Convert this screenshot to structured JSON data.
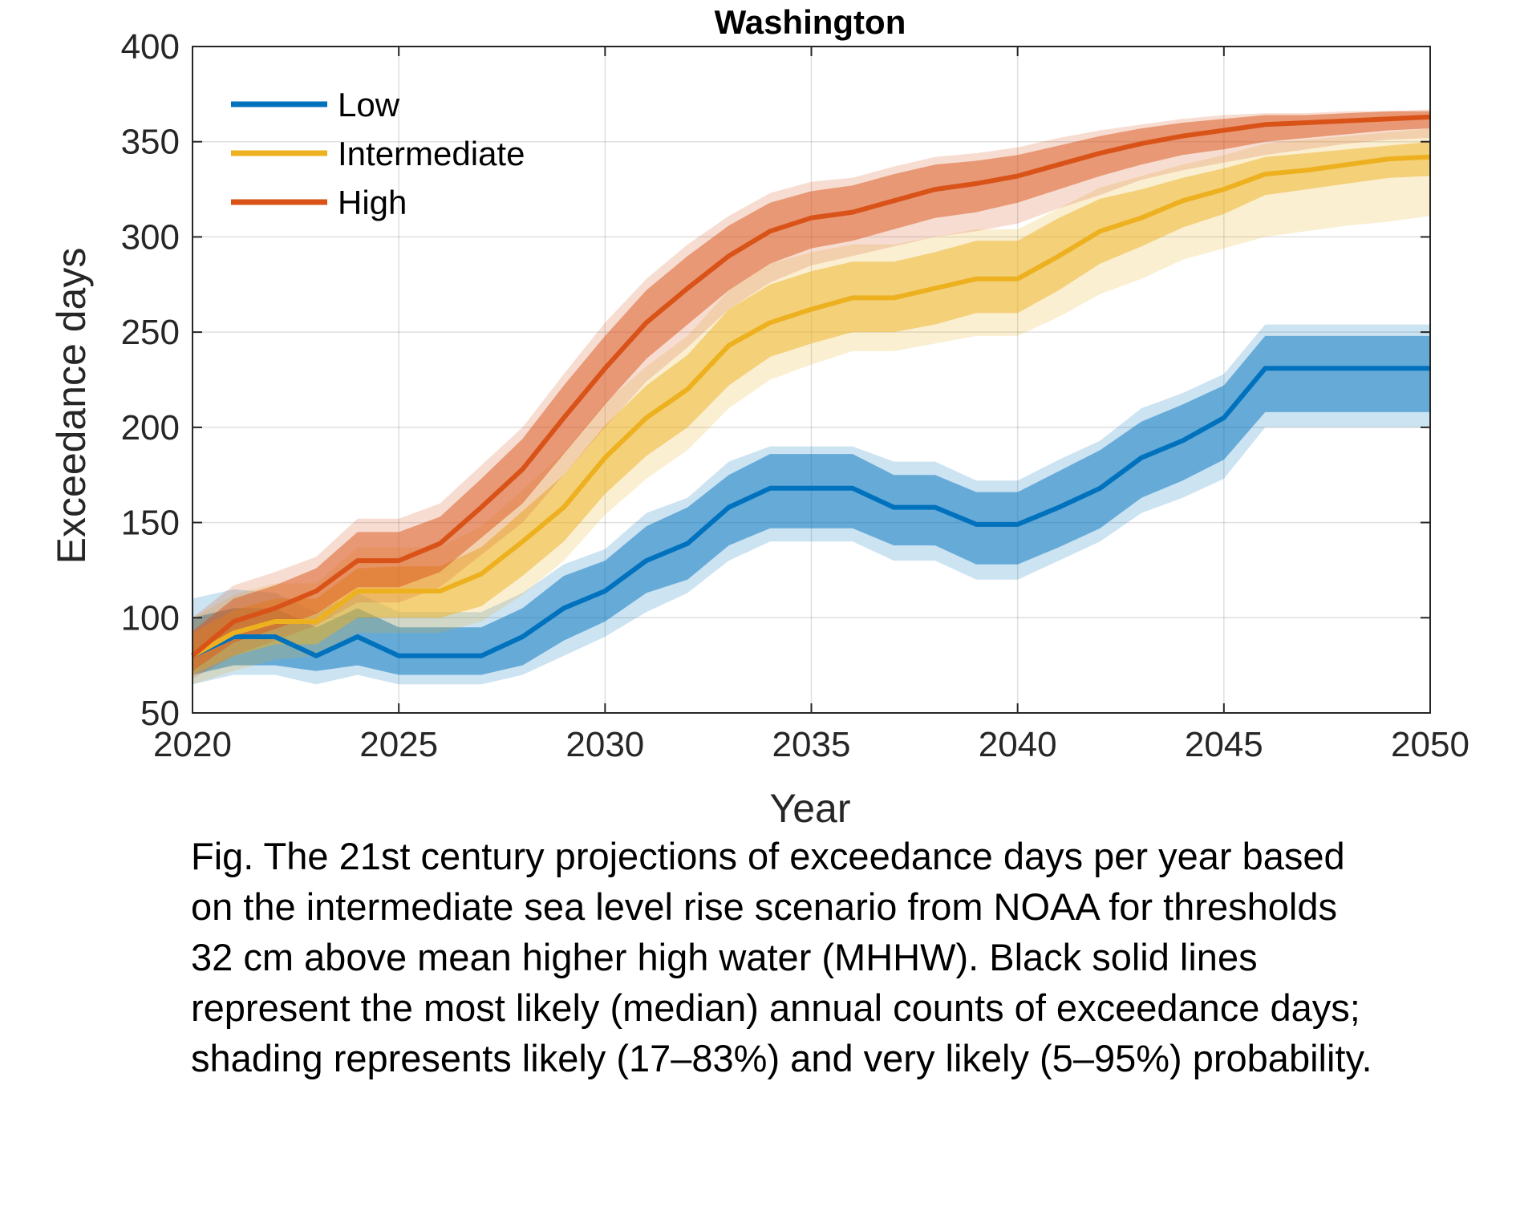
{
  "chart_data": {
    "type": "area",
    "title": "Washington",
    "xlabel": "Year",
    "ylabel": "Exceedance days",
    "xlim": [
      2020,
      2050
    ],
    "ylim": [
      50,
      400
    ],
    "xticks": [
      "2020",
      "2025",
      "2030",
      "2035",
      "2040",
      "2045",
      "2050"
    ],
    "yticks": [
      "50",
      "100",
      "150",
      "200",
      "250",
      "300",
      "350",
      "400"
    ],
    "grid": true,
    "legend_position": "top-left",
    "x": [
      2020,
      2021,
      2022,
      2023,
      2024,
      2025,
      2026,
      2027,
      2028,
      2029,
      2030,
      2031,
      2032,
      2033,
      2034,
      2035,
      2036,
      2037,
      2038,
      2039,
      2040,
      2041,
      2042,
      2043,
      2044,
      2045,
      2046,
      2047,
      2048,
      2049,
      2050
    ],
    "series": [
      {
        "name": "Low",
        "color": "#0072bd",
        "median": [
          80,
          90,
          90,
          80,
          90,
          80,
          80,
          80,
          90,
          105,
          114,
          130,
          139,
          158,
          168,
          168,
          168,
          158,
          158,
          149,
          149,
          158,
          168,
          184,
          193,
          205,
          231,
          231,
          231,
          231,
          231
        ],
        "likely_low": [
          70,
          75,
          75,
          72,
          75,
          70,
          70,
          70,
          75,
          88,
          98,
          113,
          120,
          138,
          147,
          147,
          147,
          138,
          138,
          128,
          128,
          137,
          147,
          163,
          172,
          183,
          208,
          208,
          208,
          208,
          208
        ],
        "likely_high": [
          100,
          105,
          105,
          95,
          105,
          95,
          95,
          95,
          105,
          122,
          130,
          148,
          158,
          175,
          186,
          186,
          186,
          175,
          175,
          166,
          166,
          177,
          188,
          203,
          212,
          222,
          248,
          248,
          248,
          248,
          248
        ],
        "very_likely_low": [
          65,
          70,
          70,
          65,
          70,
          65,
          65,
          65,
          70,
          80,
          90,
          103,
          113,
          130,
          140,
          140,
          140,
          130,
          130,
          120,
          120,
          130,
          140,
          155,
          163,
          173,
          200,
          200,
          200,
          200,
          200
        ],
        "very_likely_high": [
          110,
          115,
          113,
          103,
          113,
          103,
          103,
          103,
          113,
          128,
          136,
          155,
          163,
          182,
          190,
          190,
          190,
          182,
          182,
          172,
          172,
          183,
          193,
          210,
          218,
          228,
          254,
          254,
          254,
          254,
          254
        ]
      },
      {
        "name": "Intermediate",
        "color": "#edb120",
        "median": [
          80,
          92,
          98,
          98,
          114,
          114,
          114,
          123,
          140,
          158,
          184,
          205,
          220,
          243,
          255,
          262,
          268,
          268,
          273,
          278,
          278,
          290,
          303,
          310,
          319,
          325,
          333,
          335,
          338,
          341,
          342
        ],
        "likely_low": [
          70,
          80,
          86,
          86,
          100,
          100,
          100,
          106,
          122,
          140,
          165,
          185,
          200,
          222,
          237,
          244,
          250,
          250,
          254,
          260,
          260,
          272,
          286,
          295,
          305,
          312,
          322,
          325,
          328,
          331,
          332
        ],
        "likely_high": [
          92,
          104,
          110,
          110,
          126,
          127,
          127,
          137,
          156,
          175,
          201,
          222,
          238,
          262,
          275,
          282,
          287,
          287,
          292,
          298,
          298,
          310,
          320,
          325,
          331,
          336,
          342,
          344,
          346,
          348,
          350
        ],
        "very_likely_low": [
          65,
          72,
          78,
          80,
          92,
          92,
          92,
          98,
          112,
          130,
          154,
          173,
          188,
          210,
          225,
          233,
          240,
          240,
          244,
          248,
          248,
          258,
          270,
          278,
          288,
          294,
          300,
          303,
          306,
          308,
          311
        ],
        "very_likely_high": [
          100,
          112,
          118,
          118,
          137,
          137,
          137,
          148,
          167,
          187,
          213,
          232,
          248,
          272,
          286,
          292,
          296,
          296,
          300,
          304,
          304,
          315,
          326,
          332,
          338,
          343,
          349,
          351,
          353,
          355,
          357
        ]
      },
      {
        "name": "High",
        "color": "#d95319",
        "median": [
          80,
          98,
          105,
          114,
          130,
          130,
          139,
          158,
          178,
          205,
          231,
          255,
          273,
          290,
          303,
          310,
          313,
          319,
          325,
          328,
          332,
          338,
          344,
          349,
          353,
          356,
          359,
          360,
          361,
          362,
          363
        ],
        "likely_low": [
          72,
          87,
          94,
          102,
          116,
          116,
          124,
          142,
          160,
          186,
          212,
          236,
          254,
          272,
          286,
          294,
          298,
          304,
          310,
          313,
          318,
          325,
          332,
          338,
          343,
          346,
          350,
          352,
          354,
          356,
          357
        ],
        "likely_high": [
          93,
          110,
          117,
          126,
          145,
          145,
          153,
          173,
          194,
          222,
          248,
          272,
          290,
          306,
          318,
          324,
          327,
          333,
          338,
          340,
          343,
          348,
          353,
          357,
          360,
          362,
          364,
          364,
          365,
          366,
          366
        ],
        "very_likely_low": [
          68,
          80,
          88,
          96,
          108,
          108,
          116,
          133,
          150,
          175,
          200,
          224,
          242,
          262,
          276,
          285,
          290,
          295,
          300,
          303,
          307,
          315,
          322,
          330,
          335,
          339,
          343,
          346,
          349,
          351,
          352
        ],
        "very_likely_high": [
          100,
          117,
          124,
          132,
          152,
          152,
          160,
          180,
          200,
          228,
          255,
          278,
          296,
          311,
          323,
          329,
          331,
          337,
          342,
          344,
          347,
          352,
          356,
          359,
          362,
          364,
          365,
          365,
          366,
          366,
          367
        ]
      }
    ]
  },
  "caption": {
    "lines": [
      "Fig. The 21st century projections of exceedance days per year based",
      "on the intermediate sea level rise scenario from NOAA for thresholds",
      "32 cm above mean higher high water (MHHW). Black solid lines",
      "represent the most likely (median) annual counts of exceedance days;",
      "shading represents likely (17–83%) and very likely (5–95%) probability."
    ]
  }
}
